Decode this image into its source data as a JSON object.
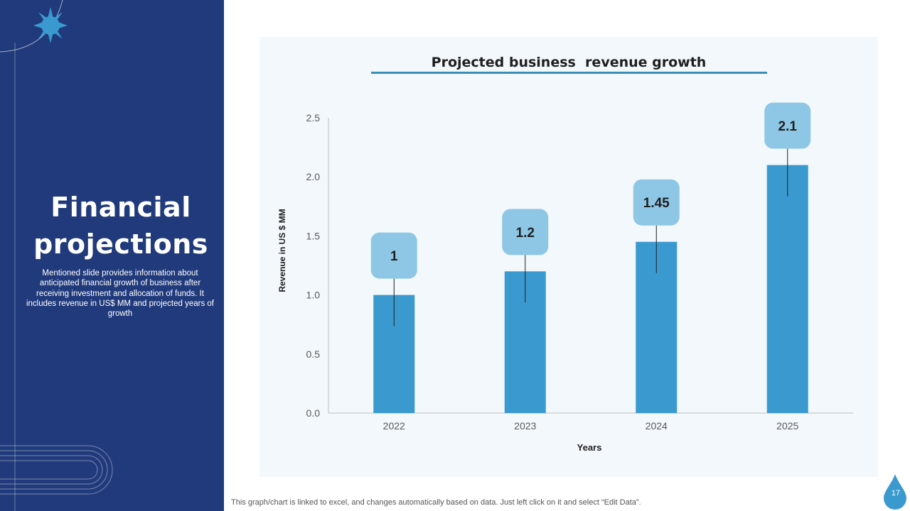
{
  "slide": {
    "title_line1": "Financial",
    "title_line2": "projections",
    "description": "Mentioned slide provides information about anticipated financial growth of business after receiving investment and allocation of funds. It includes revenue in US$ MM  and projected years of growth",
    "footnote": "This graph/chart is linked to excel,  and changes automatically based on data. Just left click on it and select “Edit Data”.",
    "page_number": "17"
  },
  "colors": {
    "sidebar": "#203a7b",
    "bar": "#3a9ad0",
    "callout": "#8ec7e5",
    "title_underline": "#3a8fb8",
    "chart_background": "#f3f8fc"
  },
  "chart_data": {
    "type": "bar",
    "title": "Projected business  revenue growth",
    "xlabel": "Years",
    "ylabel": "Revenue in US $ MM",
    "categories": [
      "2022",
      "2023",
      "2024",
      "2025"
    ],
    "values": [
      1,
      1.2,
      1.45,
      2.1
    ],
    "data_labels": [
      "1",
      "1.2",
      "1.45",
      "2.1"
    ],
    "ylim": [
      0,
      2.5
    ],
    "yticks": [
      "0.0",
      "0.5",
      "1.0",
      "1.5",
      "2.0",
      "2.5"
    ],
    "grid": false,
    "legend": "none"
  }
}
